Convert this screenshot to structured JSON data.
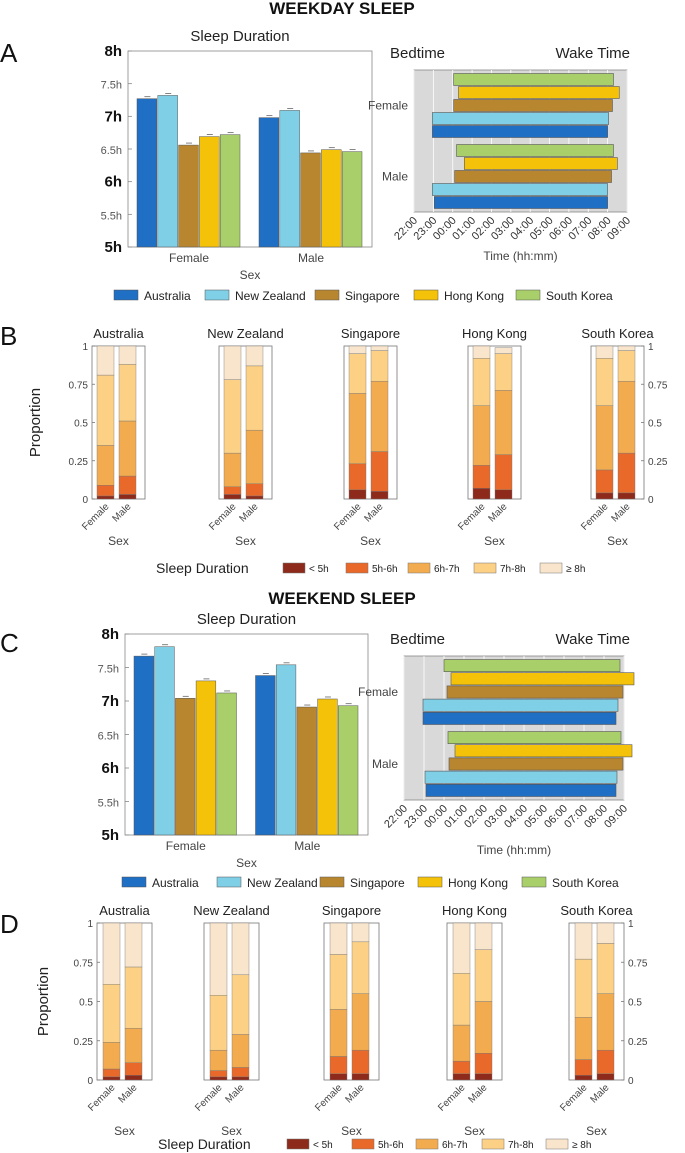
{
  "colors": {
    "countries": [
      "#1f6fc4",
      "#7fcfe6",
      "#b8862e",
      "#f5c20a",
      "#a9cf6b"
    ],
    "proportions": [
      "#8e2a1b",
      "#e8692a",
      "#f2ab4e",
      "#fcd186",
      "#f8e5cb"
    ],
    "timeline_bg": "#d9d9d9"
  },
  "chart_data": [
    {
      "id": "A-duration",
      "panel_letter": "A",
      "section_title": "WEEKDAY SLEEP",
      "type": "bar",
      "title": "Sleep Duration",
      "xlabel": "Sex",
      "categories": [
        "Female",
        "Male"
      ],
      "series": [
        {
          "name": "Australia",
          "values": [
            7.27,
            6.98
          ]
        },
        {
          "name": "New Zealand",
          "values": [
            7.32,
            7.09
          ]
        },
        {
          "name": "Singapore",
          "values": [
            6.56,
            6.44
          ]
        },
        {
          "name": "Hong Kong",
          "values": [
            6.69,
            6.49
          ]
        },
        {
          "name": "South Korea",
          "values": [
            6.72,
            6.46
          ]
        }
      ],
      "ylim": [
        5,
        8
      ],
      "yticks": [
        5,
        5.5,
        6,
        6.5,
        7,
        7.5,
        8
      ],
      "yticklabels": [
        "5h",
        "5.5h",
        "6h",
        "6.5h",
        "7h",
        "7.5h",
        "8h"
      ]
    },
    {
      "id": "A-timing",
      "type": "range-bar",
      "title_left": "Bedtime",
      "title_right": "Wake Time",
      "xlabel": "Time (hh:mm)",
      "categories": [
        "Female",
        "Male"
      ],
      "xticklabels": [
        "22:00",
        "23:00",
        "00:00",
        "01:00",
        "02:00",
        "03:00",
        "04:00",
        "05:00",
        "06:00",
        "07:00",
        "08:00",
        "09:00"
      ],
      "xlim": [
        22,
        33
      ],
      "grid": true,
      "series": [
        {
          "name": "Australia",
          "ranges": [
            [
              22.95,
              32.0
            ],
            [
              23.05,
              32.0
            ]
          ]
        },
        {
          "name": "New Zealand",
          "ranges": [
            [
              22.95,
              32.05
            ],
            [
              22.95,
              32.0
            ]
          ]
        },
        {
          "name": "Singapore",
          "ranges": [
            [
              24.05,
              32.25
            ],
            [
              24.1,
              32.2
            ]
          ]
        },
        {
          "name": "Hong Kong",
          "ranges": [
            [
              24.3,
              32.6
            ],
            [
              24.6,
              32.5
            ]
          ]
        },
        {
          "name": "South Korea",
          "ranges": [
            [
              24.05,
              32.3
            ],
            [
              24.2,
              32.3
            ]
          ]
        }
      ]
    },
    {
      "id": "B",
      "panel_letter": "B",
      "type": "bar",
      "stacked": true,
      "ylabel": "Proportion",
      "xlabel": "Sex",
      "categories": [
        "Female",
        "Male"
      ],
      "yticklabels": [
        "0",
        "0.25",
        "0.5",
        "0.75",
        "1"
      ],
      "ylim": [
        0,
        1
      ],
      "legend_title": "Sleep Duration",
      "stack_labels": [
        "< 5h",
        "5h-6h",
        "6h-7h",
        "7h-8h",
        "≥ 8h"
      ],
      "countries": [
        {
          "name": "Australia",
          "bars": [
            [
              0.02,
              0.09,
              0.35,
              0.81,
              1.0
            ],
            [
              0.03,
              0.15,
              0.51,
              0.88,
              1.0
            ]
          ]
        },
        {
          "name": "New Zealand",
          "bars": [
            [
              0.03,
              0.08,
              0.3,
              0.78,
              1.0
            ],
            [
              0.02,
              0.1,
              0.45,
              0.87,
              1.0
            ]
          ]
        },
        {
          "name": "Singapore",
          "bars": [
            [
              0.06,
              0.23,
              0.69,
              0.95,
              1.0
            ],
            [
              0.05,
              0.31,
              0.77,
              0.97,
              1.0
            ]
          ]
        },
        {
          "name": "Hong Kong",
          "bars": [
            [
              0.07,
              0.22,
              0.61,
              0.92,
              1.0
            ],
            [
              0.06,
              0.29,
              0.71,
              0.95,
              0.99
            ]
          ]
        },
        {
          "name": "South Korea",
          "bars": [
            [
              0.04,
              0.19,
              0.61,
              0.92,
              1.0
            ],
            [
              0.04,
              0.3,
              0.77,
              0.97,
              1.0
            ]
          ]
        }
      ]
    },
    {
      "id": "C-duration",
      "panel_letter": "C",
      "section_title": "WEEKEND SLEEP",
      "type": "bar",
      "title": "Sleep Duration",
      "xlabel": "Sex",
      "categories": [
        "Female",
        "Male"
      ],
      "series": [
        {
          "name": "Australia",
          "values": [
            7.67,
            7.38
          ]
        },
        {
          "name": "New Zealand",
          "values": [
            7.81,
            7.54
          ]
        },
        {
          "name": "Singapore",
          "values": [
            7.04,
            6.91
          ]
        },
        {
          "name": "Hong Kong",
          "values": [
            7.3,
            7.03
          ]
        },
        {
          "name": "South Korea",
          "values": [
            7.12,
            6.93
          ]
        }
      ],
      "ylim": [
        5,
        8
      ],
      "yticks": [
        5,
        5.5,
        6,
        6.5,
        7,
        7.5,
        8
      ],
      "yticklabels": [
        "5h",
        "5.5h",
        "6h",
        "6.5h",
        "7h",
        "7.5h",
        "8h"
      ]
    },
    {
      "id": "C-timing",
      "type": "range-bar",
      "title_left": "Bedtime",
      "title_right": "Wake Time",
      "xlabel": "Time (hh:mm)",
      "categories": [
        "Female",
        "Male"
      ],
      "xticklabels": [
        "22:00",
        "23:00",
        "00:00",
        "01:00",
        "02:00",
        "03:00",
        "04:00",
        "05:00",
        "06:00",
        "07:00",
        "08:00",
        "09:00"
      ],
      "xlim": [
        22,
        33
      ],
      "grid": true,
      "series": [
        {
          "name": "Australia",
          "ranges": [
            [
              22.95,
              32.6
            ],
            [
              23.1,
              32.6
            ]
          ]
        },
        {
          "name": "New Zealand",
          "ranges": [
            [
              22.95,
              32.7
            ],
            [
              23.05,
              32.65
            ]
          ]
        },
        {
          "name": "Singapore",
          "ranges": [
            [
              24.15,
              32.95
            ],
            [
              24.25,
              32.95
            ]
          ]
        },
        {
          "name": "Hong Kong",
          "ranges": [
            [
              24.35,
              33.5
            ],
            [
              24.55,
              33.4
            ]
          ]
        },
        {
          "name": "South Korea",
          "ranges": [
            [
              24.0,
              32.8
            ],
            [
              24.2,
              32.85
            ]
          ]
        }
      ]
    },
    {
      "id": "D",
      "panel_letter": "D",
      "type": "bar",
      "stacked": true,
      "ylabel": "Proportion",
      "xlabel": "Sex",
      "categories": [
        "Female",
        "Male"
      ],
      "yticklabels": [
        "0",
        "0.25",
        "0.5",
        "0.75",
        "1"
      ],
      "ylim": [
        0,
        1
      ],
      "legend_title": "Sleep Duration",
      "stack_labels": [
        "< 5h",
        "5h-6h",
        "6h-7h",
        "7h-8h",
        "≥ 8h"
      ],
      "countries": [
        {
          "name": "Australia",
          "bars": [
            [
              0.02,
              0.07,
              0.24,
              0.61,
              1.0
            ],
            [
              0.03,
              0.11,
              0.33,
              0.72,
              1.0
            ]
          ]
        },
        {
          "name": "New Zealand",
          "bars": [
            [
              0.02,
              0.06,
              0.19,
              0.54,
              1.0
            ],
            [
              0.02,
              0.08,
              0.29,
              0.67,
              1.0
            ]
          ]
        },
        {
          "name": "Singapore",
          "bars": [
            [
              0.04,
              0.15,
              0.45,
              0.8,
              1.0
            ],
            [
              0.04,
              0.19,
              0.55,
              0.88,
              1.0
            ]
          ]
        },
        {
          "name": "Hong Kong",
          "bars": [
            [
              0.04,
              0.12,
              0.35,
              0.68,
              1.0
            ],
            [
              0.04,
              0.17,
              0.5,
              0.83,
              1.0
            ]
          ]
        },
        {
          "name": "South Korea",
          "bars": [
            [
              0.03,
              0.13,
              0.4,
              0.77,
              1.0
            ],
            [
              0.04,
              0.19,
              0.55,
              0.87,
              1.0
            ]
          ]
        }
      ]
    }
  ]
}
